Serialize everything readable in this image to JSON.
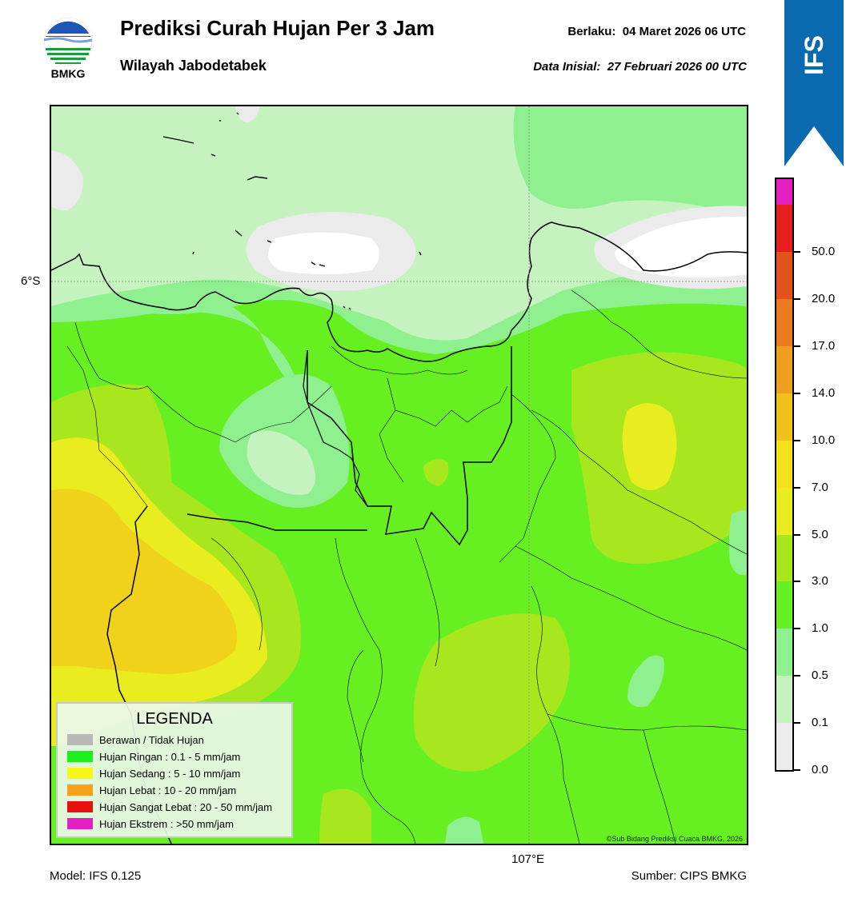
{
  "header": {
    "title": "Prediksi Curah Hujan Per 3 Jam",
    "subtitle": "Wilayah Jabodetabek",
    "valid_label": "Berlaku:",
    "valid_time": "04 Maret 2026 06 UTC",
    "initial_label": "Data Inisial:",
    "initial_time": "27 Februari 2026 00 UTC",
    "logo_text": "BMKG",
    "ribbon_text": "IFS"
  },
  "map": {
    "lat_label": "6°S",
    "lon_label": "107°E",
    "credit": "©Sub Bidang Prediksi Cuaca BMKG, 2026"
  },
  "colorbar": {
    "levels": [
      "0.0",
      "0.1",
      "0.5",
      "1.0",
      "3.0",
      "5.0",
      "7.0",
      "10.0",
      "14.0",
      "17.0",
      "20.0",
      "50.0"
    ],
    "colors": [
      "#ebebeb",
      "#c6f2c0",
      "#8ef08e",
      "#66f022",
      "#a8e61e",
      "#e9ed1f",
      "#f4e11b",
      "#f1c01b",
      "#ee9f1d",
      "#eb7b1e",
      "#e3511d",
      "#e61e1e",
      "#e61fc3"
    ]
  },
  "legend": {
    "title": "LEGENDA",
    "items": [
      {
        "label": "Berawan / Tidak Hujan",
        "color": "#b8b8b8"
      },
      {
        "label": "Hujan Ringan : 0.1 - 5 mm/jam",
        "color": "#1ef01e"
      },
      {
        "label": "Hujan Sedang : 5 - 10 mm/jam",
        "color": "#f6f61a"
      },
      {
        "label": "Hujan Lebat : 10 - 20 mm/jam",
        "color": "#f7a21a"
      },
      {
        "label": "Hujan Sangat Lebat : 20 - 50 mm/jam",
        "color": "#e80f0f"
      },
      {
        "label": "Hujan Ekstrem : >50 mm/jam",
        "color": "#e61fc3"
      }
    ]
  },
  "footer": {
    "model": "Model: IFS 0.125",
    "source": "Sumber: CIPS BMKG"
  }
}
